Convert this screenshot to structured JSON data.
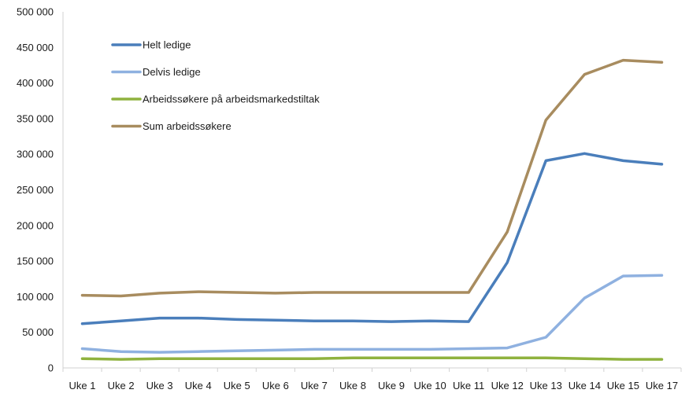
{
  "chart_data": {
    "type": "line",
    "title": "",
    "xlabel": "",
    "ylabel": "",
    "ylim": [
      0,
      500000
    ],
    "y_ticks": [
      0,
      50000,
      100000,
      150000,
      200000,
      250000,
      300000,
      350000,
      400000,
      450000,
      500000
    ],
    "y_tick_labels": [
      "0",
      "50 000",
      "100 000",
      "150 000",
      "200 000",
      "250 000",
      "300 000",
      "350 000",
      "400 000",
      "450 000",
      "500 000"
    ],
    "grid": false,
    "legend_position": "top-left",
    "categories": [
      "Uke 1",
      "Uke 2",
      "Uke 3",
      "Uke 4",
      "Uke 5",
      "Uke 6",
      "Uke 7",
      "Uke 8",
      "Uke 9",
      "Uke 10",
      "Uke 11",
      "Uke 12",
      "Uke 13",
      "Uke 14",
      "Uke 15",
      "Uke 17"
    ],
    "series": [
      {
        "name": "Helt ledige",
        "color": "#4a7ebb",
        "values": [
          62000,
          66000,
          70000,
          70000,
          68000,
          67000,
          66000,
          66000,
          65000,
          66000,
          65000,
          148000,
          291000,
          301000,
          291000,
          286000
        ]
      },
      {
        "name": "Delvis ledige",
        "color": "#8fb1e0",
        "values": [
          27000,
          23000,
          22000,
          23000,
          24000,
          25000,
          26000,
          26000,
          26000,
          26000,
          27000,
          28000,
          43000,
          98000,
          129000,
          130000
        ]
      },
      {
        "name": "Arbeidssøkere på arbeidsmarkedstiltak",
        "color": "#8fb23e",
        "values": [
          13000,
          12000,
          13000,
          13000,
          13000,
          13000,
          13000,
          14000,
          14000,
          14000,
          14000,
          14000,
          14000,
          13000,
          12000,
          12000
        ]
      },
      {
        "name": "Sum arbeidssøkere",
        "color": "#a88c5f",
        "values": [
          102000,
          101000,
          105000,
          107000,
          106000,
          105000,
          106000,
          106000,
          106000,
          106000,
          106000,
          191000,
          348000,
          412000,
          432000,
          429000
        ]
      }
    ]
  }
}
